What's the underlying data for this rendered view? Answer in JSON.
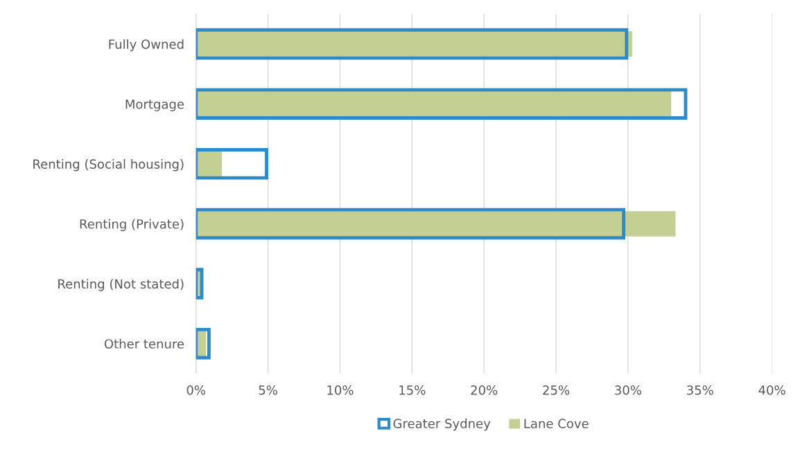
{
  "chart_data": {
    "type": "bar",
    "orientation": "horizontal",
    "categories": [
      "Fully Owned",
      "Mortgage",
      "Renting (Social housing)",
      "Renting (Private)",
      "Renting (Not stated)",
      "Other tenure"
    ],
    "series": [
      {
        "name": "Greater Sydney",
        "color": "#2e8bc9",
        "values": [
          29.9,
          34.0,
          4.9,
          29.7,
          0.4,
          0.9
        ]
      },
      {
        "name": "Lane Cove",
        "color": "#c3cf93",
        "values": [
          30.3,
          33.0,
          1.8,
          33.3,
          0.3,
          0.7
        ]
      }
    ],
    "xlim": [
      0,
      40
    ],
    "xticks": [
      {
        "value": 0,
        "label": "0%"
      },
      {
        "value": 5,
        "label": "5%"
      },
      {
        "value": 10,
        "label": "10%"
      },
      {
        "value": 15,
        "label": "15%"
      },
      {
        "value": 20,
        "label": "20%"
      },
      {
        "value": 25,
        "label": "25%"
      },
      {
        "value": 30,
        "label": "30%"
      },
      {
        "value": 35,
        "label": "35%"
      },
      {
        "value": 40,
        "label": "40%"
      }
    ],
    "grid": "x",
    "legend": "bottom"
  }
}
